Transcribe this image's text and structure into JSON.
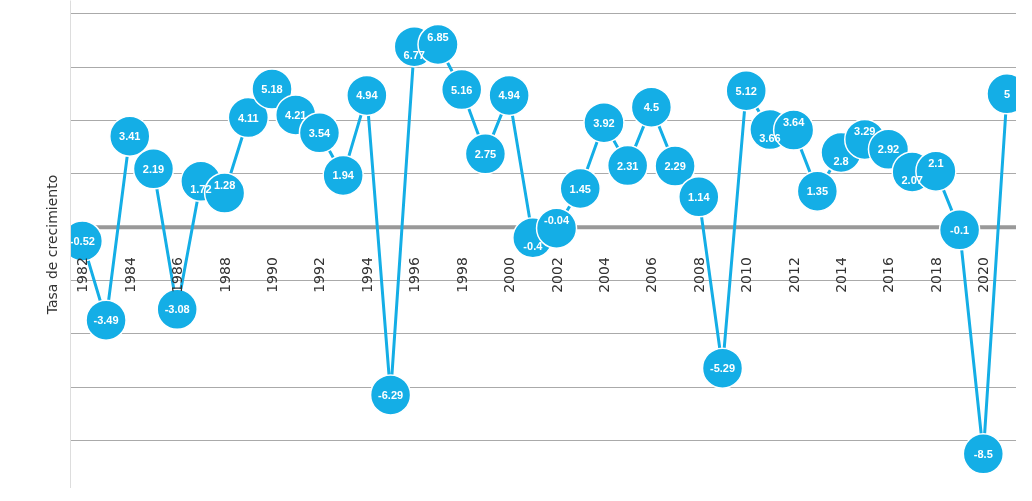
{
  "chart_data": {
    "type": "line",
    "ylabel": "Tasa de crecimiento",
    "x": [
      1982,
      1983,
      1984,
      1985,
      1986,
      1987,
      1988,
      1989,
      1990,
      1991,
      1992,
      1993,
      1994,
      1995,
      1996,
      1997,
      1998,
      1999,
      2000,
      2001,
      2002,
      2003,
      2004,
      2005,
      2006,
      2007,
      2008,
      2009,
      2010,
      2011,
      2012,
      2013,
      2014,
      2015,
      2016,
      2017,
      2018,
      2019,
      2020,
      2021
    ],
    "series": [
      {
        "color": "#14aee6",
        "values": [
          -0.52,
          -3.49,
          3.41,
          2.19,
          -3.08,
          1.72,
          1.28,
          4.11,
          5.18,
          4.21,
          3.54,
          1.94,
          4.94,
          -6.29,
          6.77,
          6.85,
          5.16,
          2.75,
          4.94,
          -0.4,
          -0.04,
          1.45,
          3.92,
          2.31,
          4.5,
          2.29,
          1.14,
          -5.29,
          5.12,
          3.66,
          3.64,
          1.35,
          2.8,
          3.29,
          2.92,
          2.07,
          2.1,
          -0.1,
          -8.5,
          5
        ]
      }
    ],
    "xlim": [
      1981.5,
      2021.4
    ],
    "xticks": [
      1982,
      1984,
      1986,
      1988,
      1990,
      1992,
      1994,
      1996,
      1998,
      2000,
      2002,
      2004,
      2006,
      2008,
      2010,
      2012,
      2014,
      2016,
      2018,
      2020
    ],
    "ylim": [
      -9.8,
      8.5
    ],
    "yticks": [
      {
        "value": -8,
        "label": null
      },
      {
        "value": -6,
        "label": null
      },
      {
        "value": -4,
        "label": null
      },
      {
        "value": -2,
        "label": null
      },
      {
        "value": 2,
        "label": null
      },
      {
        "value": 4,
        "label": null
      },
      {
        "value": 6,
        "label": null
      },
      {
        "value": 8,
        "label": null
      }
    ],
    "grid": "y",
    "marker": "circle",
    "line_style": "solid",
    "data_labels": true,
    "tick_labels": "x"
  }
}
